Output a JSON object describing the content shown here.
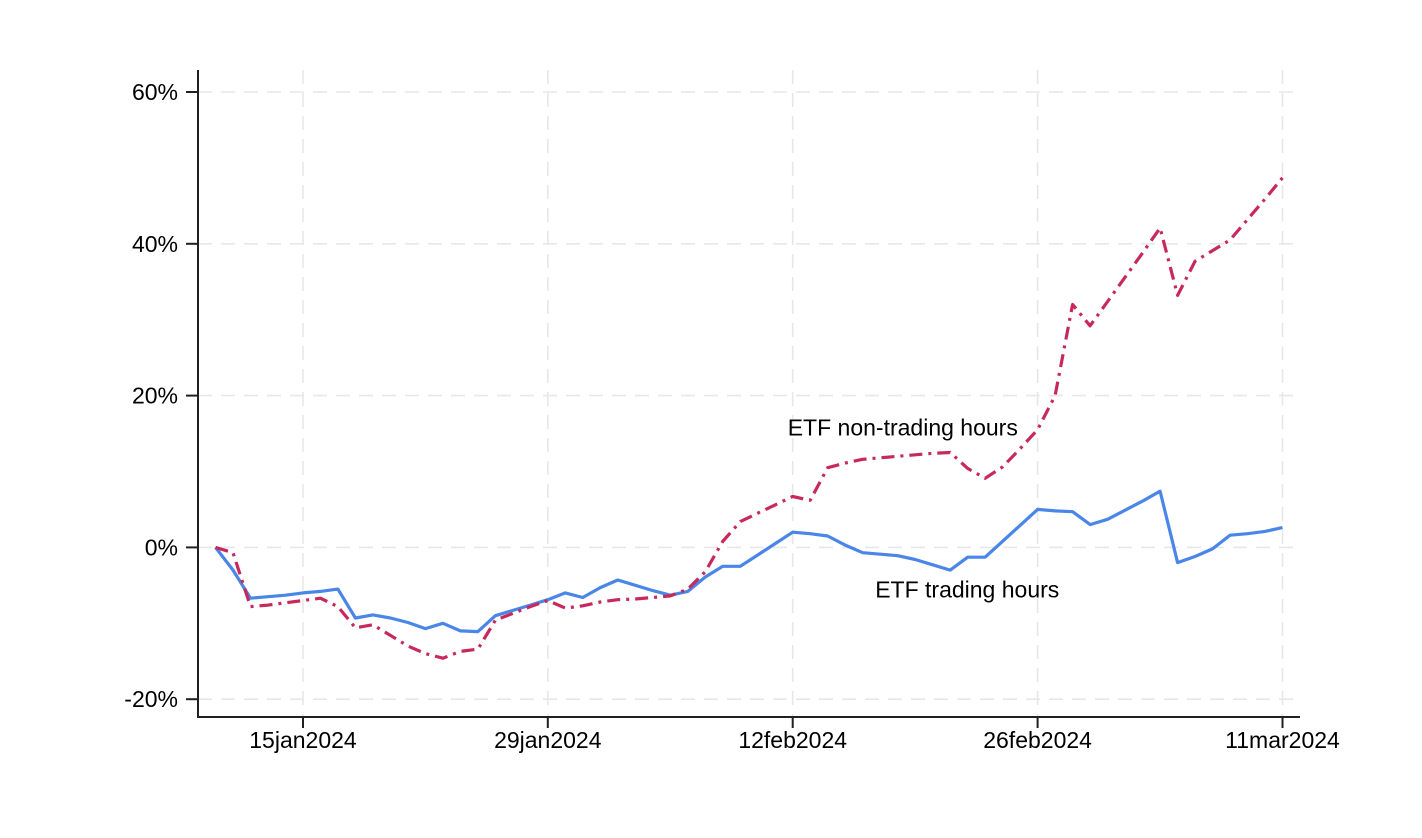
{
  "chart_data": {
    "type": "line",
    "title": "",
    "xlabel": "",
    "ylabel": "",
    "grid": true,
    "background": "#ffffff",
    "xlim": [
      "2024-01-09",
      "2024-03-12"
    ],
    "ylim": [
      -22.35,
      62.9
    ],
    "yticks": [
      {
        "value": -20,
        "label": "-20%"
      },
      {
        "value": 0,
        "label": "0%"
      },
      {
        "value": 20,
        "label": "20%"
      },
      {
        "value": 40,
        "label": "40%"
      },
      {
        "value": 60,
        "label": "60%"
      }
    ],
    "xticks": [
      {
        "date": "2024-01-15",
        "label": "15jan2024"
      },
      {
        "date": "2024-01-29",
        "label": "29jan2024"
      },
      {
        "date": "2024-02-12",
        "label": "12feb2024"
      },
      {
        "date": "2024-02-26",
        "label": "26feb2024"
      },
      {
        "date": "2024-03-11",
        "label": "11mar2024"
      }
    ],
    "x": [
      "2024-01-10",
      "2024-01-11",
      "2024-01-12",
      "2024-01-13",
      "2024-01-14",
      "2024-01-15",
      "2024-01-16",
      "2024-01-17",
      "2024-01-18",
      "2024-01-19",
      "2024-01-20",
      "2024-01-21",
      "2024-01-22",
      "2024-01-23",
      "2024-01-24",
      "2024-01-25",
      "2024-01-26",
      "2024-01-27",
      "2024-01-28",
      "2024-01-29",
      "2024-01-30",
      "2024-01-31",
      "2024-02-01",
      "2024-02-02",
      "2024-02-03",
      "2024-02-04",
      "2024-02-05",
      "2024-02-06",
      "2024-02-07",
      "2024-02-08",
      "2024-02-09",
      "2024-02-10",
      "2024-02-11",
      "2024-02-12",
      "2024-02-13",
      "2024-02-14",
      "2024-02-15",
      "2024-02-16",
      "2024-02-17",
      "2024-02-18",
      "2024-02-19",
      "2024-02-20",
      "2024-02-21",
      "2024-02-22",
      "2024-02-23",
      "2024-02-24",
      "2024-02-25",
      "2024-02-26",
      "2024-02-27",
      "2024-02-28",
      "2024-02-29",
      "2024-03-01",
      "2024-03-02",
      "2024-03-03",
      "2024-03-04",
      "2024-03-05",
      "2024-03-06",
      "2024-03-07",
      "2024-03-08",
      "2024-03-09",
      "2024-03-10",
      "2024-03-11"
    ],
    "series": [
      {
        "name": "ETF trading hours",
        "color": "#4a86e8",
        "style": "solid",
        "values": [
          0,
          -3.0,
          -6.7,
          -6.5,
          -6.3,
          -6.0,
          -5.8,
          -5.5,
          -9.3,
          -8.9,
          -9.3,
          -9.9,
          -10.7,
          -10.0,
          -11.0,
          -11.1,
          -9.0,
          -8.3,
          -7.6,
          -6.9,
          -6.0,
          -6.6,
          -5.3,
          -4.3,
          -5.0,
          -5.7,
          -6.3,
          -5.8,
          -3.9,
          -2.5,
          -2.5,
          -1.0,
          0.5,
          2.0,
          1.8,
          1.5,
          0.3,
          -0.7,
          -0.9,
          -1.1,
          -1.6,
          -2.3,
          -3.0,
          -1.3,
          -1.3,
          0.8,
          2.9,
          5.0,
          4.8,
          4.7,
          3.0,
          3.7,
          4.9,
          6.1,
          7.4,
          -2.0,
          -1.2,
          -0.2,
          1.6,
          1.8,
          2.1,
          2.6
        ]
      },
      {
        "name": "ETF non-trading hours",
        "color": "#c7295c",
        "style": "dash-dot",
        "values": [
          0,
          -0.7,
          -7.8,
          -7.6,
          -7.3,
          -7.0,
          -6.7,
          -7.8,
          -10.6,
          -10.2,
          -11.6,
          -13.0,
          -14.0,
          -14.6,
          -13.7,
          -13.4,
          -9.6,
          -8.7,
          -7.8,
          -7.0,
          -8.0,
          -7.7,
          -7.2,
          -6.9,
          -6.8,
          -6.6,
          -6.4,
          -5.5,
          -3.2,
          0.8,
          3.4,
          4.5,
          5.6,
          6.7,
          6.2,
          10.5,
          11.1,
          11.6,
          11.8,
          12.0,
          12.2,
          12.4,
          12.5,
          10.4,
          9.1,
          10.6,
          13.0,
          15.5,
          20.0,
          32.0,
          29.2,
          32.4,
          35.6,
          38.8,
          42.1,
          33.2,
          37.7,
          39.1,
          40.5,
          43.2,
          45.9,
          48.7
        ]
      }
    ],
    "annotations": [
      {
        "text": "ETF non-trading hours",
        "x": "2024-02-12",
        "y": 15.7
      },
      {
        "text": "ETF trading hours",
        "x": "2024-02-17",
        "y": -5.6
      }
    ]
  }
}
